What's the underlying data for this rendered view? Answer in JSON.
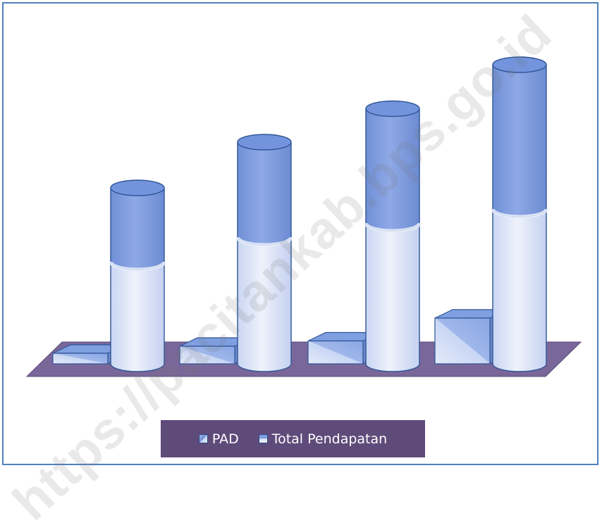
{
  "chart_data": {
    "type": "bar",
    "title": "",
    "xlabel": "",
    "ylabel": "",
    "categories": [
      "",
      "",
      "",
      ""
    ],
    "series": [
      {
        "name": "PAD",
        "values": [
          6,
          10,
          13,
          26
        ]
      },
      {
        "name": "Total Pendapatan",
        "values": [
          100,
          126,
          145,
          170
        ],
        "lower_portion": [
          58,
          72,
          80,
          88
        ]
      }
    ],
    "ylim": [
      0,
      180
    ],
    "grid": false,
    "legend_position": "bottom",
    "colors": {
      "cylinder_top": "#7f9fe0",
      "cylinder_bottom": "#dfe7f8",
      "outline": "#2f5597",
      "floor": "#7a6799",
      "legend_bg": "#5f4b7a",
      "frame": "#4f81bd"
    }
  },
  "legend": {
    "items": [
      {
        "label": "PAD",
        "swatch": "pad"
      },
      {
        "label": "Total Pendapatan",
        "swatch": "total"
      }
    ]
  },
  "watermark": {
    "text": "https://pacitankab.bps.go.id"
  }
}
